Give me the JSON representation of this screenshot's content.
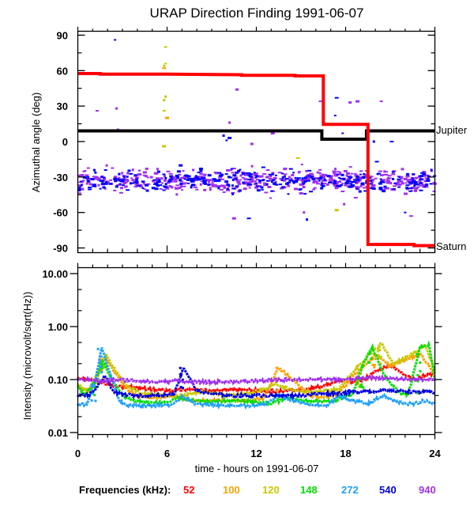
{
  "chart_data": [
    {
      "id": "direction",
      "type": "scatter",
      "title": "URAP Direction Finding  1991-06-07",
      "xlabel": "",
      "ylabel": "Azimuthal angle (deg)",
      "xlim": [
        0,
        24
      ],
      "ylim": [
        -90,
        90
      ],
      "yticks": [
        90,
        60,
        30,
        0,
        -30,
        -60,
        -90
      ],
      "ytick_labels": [
        "90",
        "60",
        "30",
        "0",
        "-30",
        "-60",
        "-90"
      ],
      "grid": false,
      "reference_lines": [
        {
          "name": "Jupiter",
          "color": "#000000",
          "label": "Jupiter",
          "steps": [
            [
              0,
              9
            ],
            [
              16.4,
              9
            ],
            [
              16.4,
              2
            ],
            [
              19.4,
              2
            ],
            [
              19.4,
              9
            ],
            [
              24,
              9
            ]
          ]
        },
        {
          "name": "Saturn",
          "color": "#ff0000",
          "label": "Saturn",
          "steps": [
            [
              0,
              57.5
            ],
            [
              1.5,
              57.5
            ],
            [
              1.5,
              57
            ],
            [
              6.0,
              57
            ],
            [
              11.0,
              56.5
            ],
            [
              11.0,
              56
            ],
            [
              14.6,
              56
            ],
            [
              14.6,
              55.5
            ],
            [
              16.5,
              55.5
            ],
            [
              16.5,
              14.5
            ],
            [
              19.5,
              14.5
            ],
            [
              19.5,
              -87
            ],
            [
              22.6,
              -87
            ],
            [
              22.6,
              -88
            ],
            [
              24,
              -88
            ]
          ]
        }
      ],
      "scatter_series": [
        {
          "name": "940 kHz",
          "color": "#a030f0",
          "cloud": {
            "x_range": [
              0,
              24
            ],
            "center": -33,
            "spread": 8,
            "count": 520
          },
          "points": [
            [
              1.3,
              26
            ],
            [
              2.7,
              10
            ],
            [
              2.6,
              28
            ],
            [
              10.7,
              44
            ],
            [
              11.7,
              -2
            ],
            [
              10.2,
              16
            ],
            [
              13.1,
              7
            ],
            [
              16.3,
              34
            ],
            [
              18.3,
              33
            ],
            [
              18.8,
              34
            ],
            [
              20.4,
              34
            ],
            [
              10.5,
              -65
            ],
            [
              15.2,
              -60
            ],
            [
              17.9,
              -53
            ],
            [
              22.4,
              -63
            ],
            [
              23.2,
              -88
            ]
          ]
        },
        {
          "name": "540 kHz",
          "color": "#0000ff",
          "cloud": {
            "x_range": [
              0,
              24
            ],
            "center": -33,
            "spread": 7,
            "count": 330
          },
          "points": [
            [
              2.5,
              86
            ],
            [
              10.0,
              1
            ],
            [
              10.2,
              3
            ],
            [
              9.8,
              5
            ],
            [
              17.4,
              37
            ],
            [
              17.3,
              22
            ],
            [
              17.8,
              7
            ],
            [
              20.1,
              -17
            ],
            [
              19.9,
              0
            ],
            [
              21.1,
              0
            ],
            [
              11.5,
              -65
            ],
            [
              22.0,
              -60
            ],
            [
              15.4,
              -66
            ]
          ]
        },
        {
          "name": "120 kHz",
          "color": "#c8c800",
          "cloud": null,
          "points": [
            [
              5.9,
              80
            ],
            [
              5.9,
              66
            ],
            [
              5.8,
              64
            ],
            [
              5.9,
              38
            ],
            [
              5.8,
              35
            ],
            [
              5.8,
              26
            ],
            [
              5.8,
              -4
            ],
            [
              17.4,
              -58
            ],
            [
              14.8,
              -14
            ]
          ]
        },
        {
          "name": "100 kHz",
          "color": "#ffa000",
          "cloud": null,
          "points": [
            [
              5.8,
              62
            ],
            [
              6.0,
              20
            ]
          ]
        }
      ]
    },
    {
      "id": "intensity",
      "type": "line",
      "title": "",
      "xlabel": "time - hours on 1991-06-07",
      "ylabel": "Intensity (microvolt/sqrt(Hz))",
      "xlim": [
        0,
        24
      ],
      "ylim": [
        0.01,
        10
      ],
      "yscale": "log",
      "xticks": [
        0,
        6,
        12,
        18,
        24
      ],
      "xtick_labels": [
        "0",
        "6",
        "12",
        "18",
        "24"
      ],
      "yticks": [
        10,
        1,
        0.1,
        0.01
      ],
      "ytick_labels": [
        "10.00",
        "1.00",
        "0.10",
        "0.01"
      ],
      "grid": false,
      "legend": {
        "placement": "bottom",
        "title": "Frequencies (kHz):",
        "entries": [
          "52",
          "100",
          "120",
          "148",
          "272",
          "540",
          "940"
        ]
      },
      "series": [
        {
          "name": "52",
          "color": "#ff0000",
          "x": [
            0,
            0.8,
            1.5,
            2.5,
            4,
            5,
            6.3,
            7,
            9,
            10.5,
            12,
            13.5,
            15,
            16.5,
            17.5,
            18.5,
            19.2,
            20,
            20.8,
            21.5,
            22,
            22.7,
            23.3,
            24
          ],
          "y": [
            0.105,
            0.1,
            0.09,
            0.075,
            0.07,
            0.065,
            0.06,
            0.065,
            0.062,
            0.065,
            0.063,
            0.06,
            0.065,
            0.075,
            0.095,
            0.09,
            0.1,
            0.14,
            0.18,
            0.15,
            0.12,
            0.1,
            0.12,
            0.13
          ]
        },
        {
          "name": "100",
          "color": "#ffa000",
          "x": [
            0,
            0.8,
            1.3,
            1.8,
            2.6,
            3.2,
            4,
            5.5,
            6.2,
            6.8,
            7.5,
            9,
            11,
            12.5,
            13.5,
            14.8,
            15.5,
            16.8,
            17.5,
            19,
            20,
            21,
            22.2,
            23,
            24
          ],
          "y": [
            0.07,
            0.06,
            0.1,
            0.28,
            0.12,
            0.07,
            0.05,
            0.045,
            0.05,
            0.045,
            0.042,
            0.04,
            0.04,
            0.045,
            0.17,
            0.08,
            0.05,
            0.045,
            0.055,
            0.16,
            0.3,
            0.18,
            0.25,
            0.3,
            0.13
          ]
        },
        {
          "name": "120",
          "color": "#c8c800",
          "x": [
            0,
            0.7,
            1.4,
            1.9,
            2.5,
            3.2,
            4.2,
            5.5,
            6.3,
            7,
            8.5,
            10,
            11.5,
            12.5,
            13.3,
            14.2,
            15,
            16.5,
            17.5,
            19,
            20.4,
            21.2,
            22.5,
            23.3,
            24
          ],
          "y": [
            0.08,
            0.06,
            0.15,
            0.3,
            0.15,
            0.08,
            0.055,
            0.05,
            0.05,
            0.05,
            0.06,
            0.05,
            0.055,
            0.065,
            0.085,
            0.065,
            0.06,
            0.06,
            0.065,
            0.2,
            0.48,
            0.2,
            0.3,
            0.45,
            0.15
          ]
        },
        {
          "name": "148",
          "color": "#00e000",
          "x": [
            0,
            0.5,
            1.2,
            1.7,
            2.3,
            3,
            3.8,
            5,
            6.2,
            6.8,
            7.5,
            9,
            10,
            11,
            12.2,
            13,
            14,
            15,
            16.5,
            17.3,
            18.5,
            19.2,
            19.8,
            20.6,
            21.5,
            22.2,
            23,
            23.6,
            24
          ],
          "y": [
            0.075,
            0.05,
            0.1,
            0.22,
            0.1,
            0.05,
            0.04,
            0.036,
            0.038,
            0.045,
            0.04,
            0.038,
            0.04,
            0.04,
            0.037,
            0.035,
            0.045,
            0.04,
            0.038,
            0.04,
            0.055,
            0.2,
            0.4,
            0.12,
            0.06,
            0.05,
            0.4,
            0.45,
            0.1
          ]
        },
        {
          "name": "272",
          "color": "#20a0ff",
          "x": [
            0,
            0.6,
            1.2,
            1.6,
            2.2,
            2.8,
            3.4,
            4.2,
            5.5,
            6.5,
            7,
            8,
            10,
            11.5,
            12.5,
            13.5,
            14.5,
            15.5,
            16.8,
            17.5,
            18.5,
            19.5,
            20.5,
            21.5,
            22.5,
            23.3,
            24
          ],
          "y": [
            0.033,
            0.035,
            0.1,
            0.42,
            0.12,
            0.04,
            0.033,
            0.032,
            0.033,
            0.034,
            0.05,
            0.034,
            0.033,
            0.032,
            0.033,
            0.05,
            0.04,
            0.034,
            0.032,
            0.05,
            0.04,
            0.035,
            0.05,
            0.038,
            0.034,
            0.04,
            0.035
          ]
        },
        {
          "name": "540",
          "color": "#0000e0",
          "x": [
            0,
            0.8,
            1.3,
            1.8,
            2.4,
            3,
            4,
            5.5,
            6.5,
            7.1,
            8,
            10,
            12,
            13.5,
            15,
            16.5,
            17.5,
            19,
            20,
            21,
            22,
            23,
            24
          ],
          "y": [
            0.05,
            0.052,
            0.07,
            0.12,
            0.06,
            0.052,
            0.05,
            0.05,
            0.055,
            0.17,
            0.06,
            0.05,
            0.05,
            0.05,
            0.05,
            0.055,
            0.055,
            0.06,
            0.06,
            0.062,
            0.06,
            0.058,
            0.058
          ]
        },
        {
          "name": "940",
          "color": "#a030f0",
          "x": [
            0,
            1,
            1.5,
            2.5,
            4,
            5,
            6,
            6.5,
            7.5,
            9,
            11,
            12.5,
            14,
            15.5,
            16.5,
            18,
            19.5,
            21,
            22.5,
            24
          ],
          "y": [
            0.1,
            0.1,
            0.09,
            0.1,
            0.095,
            0.09,
            0.092,
            0.095,
            0.09,
            0.09,
            0.092,
            0.095,
            0.1,
            0.1,
            0.1,
            0.1,
            0.11,
            0.105,
            0.1,
            0.1
          ]
        }
      ]
    }
  ]
}
